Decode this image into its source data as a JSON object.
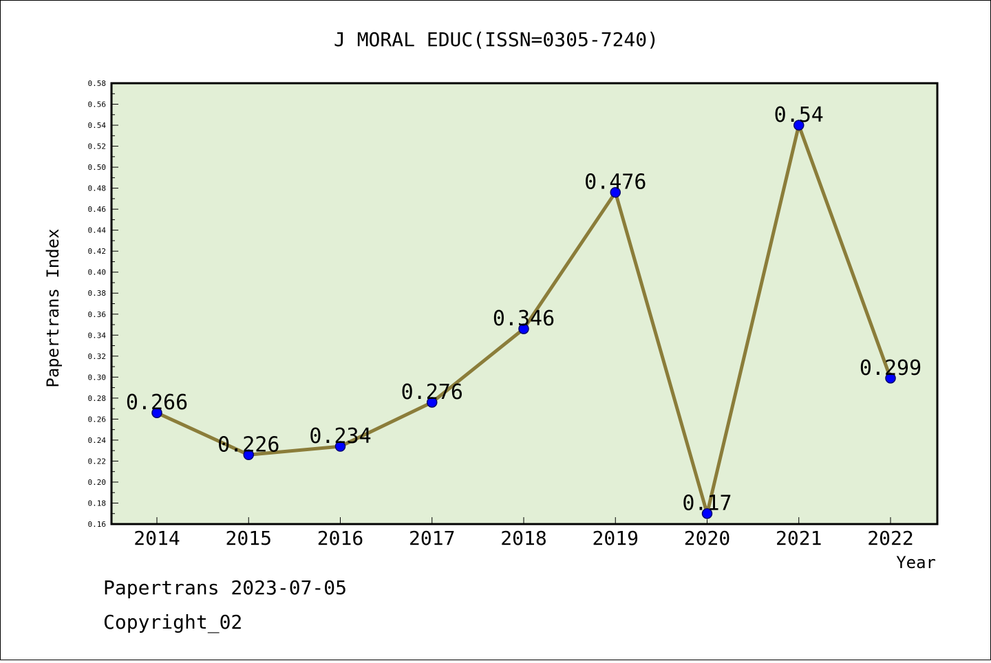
{
  "chart_data": {
    "type": "line",
    "title": "J MORAL EDUC(ISSN=0305-7240)",
    "xlabel": "Year",
    "ylabel": "Papertrans Index",
    "categories": [
      "2014",
      "2015",
      "2016",
      "2017",
      "2018",
      "2019",
      "2020",
      "2021",
      "2022"
    ],
    "series": [
      {
        "values": [
          0.266,
          0.226,
          0.234,
          0.276,
          0.346,
          0.476,
          0.17,
          0.54,
          0.299
        ]
      }
    ],
    "data_labels": [
      "0.266",
      "0.226",
      "0.234",
      "0.276",
      "0.346",
      "0.476",
      "0.17",
      "0.54",
      "0.299"
    ],
    "ylim": [
      0.16,
      0.58
    ],
    "y_ticks": [
      "0.16",
      "0.18",
      "0.20",
      "0.22",
      "0.24",
      "0.26",
      "0.28",
      "0.30",
      "0.32",
      "0.34",
      "0.36",
      "0.38",
      "0.40",
      "0.42",
      "0.44",
      "0.46",
      "0.48",
      "0.50",
      "0.52",
      "0.54",
      "0.56",
      "0.58"
    ],
    "grid": false,
    "legend": "none",
    "colors": {
      "plot_background": "#e2efd6",
      "line": "#8b7d3a",
      "marker": "#0000ff",
      "marker_edge": "#00006e"
    }
  },
  "footer": {
    "date_line": "Papertrans 2023-07-05",
    "copyright": "Copyright_02"
  }
}
